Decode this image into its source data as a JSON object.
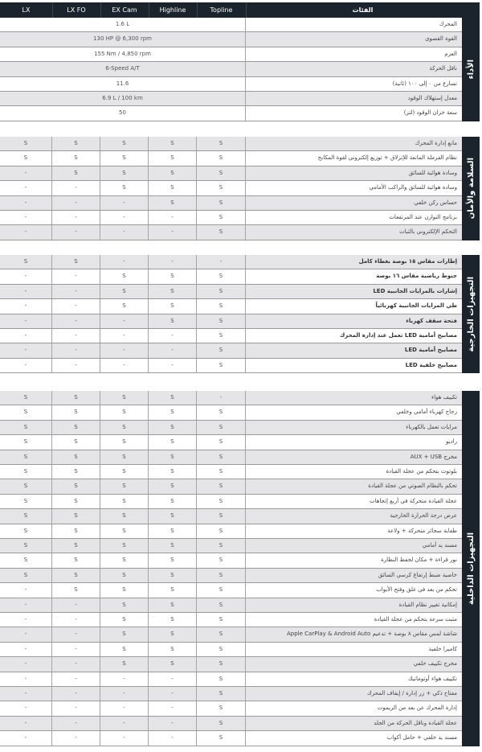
{
  "header": {
    "trims": [
      "LX",
      "LX FO",
      "EX Cam",
      "Highline",
      "Topline"
    ],
    "features_title": "الفئات"
  },
  "colors": {
    "dark": "#1b232d",
    "stripe": "#e5e5e7"
  },
  "sections": [
    {
      "title": "الأداء",
      "rows": [
        {
          "label": "المحرك",
          "value": "1.6 L"
        },
        {
          "label": "القوة القصوى",
          "value": "130 HP @ 6,300 rpm"
        },
        {
          "label": "العزم",
          "value": "155 Nm / 4,850 rpm"
        },
        {
          "label": "ناقل الحركة",
          "value": "6-Speed A/T"
        },
        {
          "label": "تسارع من ٠ إلى ١٠٠ (ثانية)",
          "value": "11.6"
        },
        {
          "label": "معدل إستهلاك الوقود",
          "value": "6.9 L / 100 km"
        },
        {
          "label": "سعة خزان الوقود (لتر)",
          "value": "50"
        }
      ]
    },
    {
      "title": "السلامة والأمان",
      "rows": [
        {
          "label": "مانع إدارة المحرك",
          "values": [
            "S",
            "S",
            "S",
            "S",
            "S"
          ]
        },
        {
          "label": "نظام الفرملة المانعة للإنزلاق + توزيع إلكتروني لقوة المكابح",
          "values": [
            "S",
            "S",
            "S",
            "S",
            "S"
          ]
        },
        {
          "label": "وسادة هوائية للسائق",
          "values": [
            "-",
            "S",
            "S",
            "S",
            "S"
          ]
        },
        {
          "label": "وسادة هوائية للسائق والراكب الأمامي",
          "values": [
            "-",
            "-",
            "S",
            "S",
            "S"
          ]
        },
        {
          "label": "حساس ركن خلفي",
          "values": [
            "-",
            "-",
            "-",
            "S",
            "S"
          ]
        },
        {
          "label": "برنامج التوازن عند المرتفعات",
          "values": [
            "-",
            "-",
            "-",
            "-",
            "S"
          ]
        },
        {
          "label": "التحكم الإلكتروني بالثبات",
          "values": [
            "-",
            "-",
            "-",
            "-",
            "S"
          ]
        }
      ]
    },
    {
      "title": "التجهيزات الخارجية",
      "rows": [
        {
          "label": "إطارات مقاس ١٥ بوصة بغطاء كامل",
          "values": [
            "S",
            "S",
            "-",
            "-",
            "-"
          ]
        },
        {
          "label": "جنوط رياضية مقاس ١٦ بوصة",
          "values": [
            "-",
            "-",
            "S",
            "S",
            "S"
          ]
        },
        {
          "label": "إشارات بالمرايات الجانبية LED",
          "values": [
            "-",
            "-",
            "S",
            "S",
            "S"
          ]
        },
        {
          "label": "طي المرايات الجانبية كهربائياً",
          "values": [
            "-",
            "-",
            "S",
            "S",
            "S"
          ]
        },
        {
          "label": "فتحة سقف كهرباء",
          "values": [
            "-",
            "-",
            "-",
            "S",
            "S"
          ]
        },
        {
          "label": "مصابيح أمامية LED تعمل عند إدارة المحرك",
          "values": [
            "-",
            "-",
            "-",
            "-",
            "S"
          ]
        },
        {
          "label": "مصابيح أمامية LED",
          "values": [
            "-",
            "-",
            "-",
            "-",
            "S"
          ]
        },
        {
          "label": "مصابيح خلفية LED",
          "values": [
            "-",
            "-",
            "-",
            "-",
            "S"
          ]
        }
      ]
    },
    {
      "title": "التجهيزات الداخلية",
      "rows": [
        {
          "label": "تكييف هواء",
          "values": [
            "S",
            "S",
            "S",
            "S",
            "-"
          ]
        },
        {
          "label": "زجاج كهرباء أمامي وخلفي",
          "values": [
            "S",
            "S",
            "S",
            "S",
            "S"
          ]
        },
        {
          "label": "مرايات تعمل بالكهرباء",
          "values": [
            "S",
            "S",
            "S",
            "S",
            "S"
          ]
        },
        {
          "label": "راديو",
          "values": [
            "S",
            "S",
            "S",
            "S",
            "S"
          ]
        },
        {
          "label": "مخرج AUX + USB",
          "values": [
            "S",
            "S",
            "S",
            "S",
            "S"
          ]
        },
        {
          "label": "بلوتوث بتحكم من عجلة القيادة",
          "values": [
            "S",
            "S",
            "S",
            "S",
            "S"
          ]
        },
        {
          "label": "تحكم بالنظام الصوتي من عجلة القيادة",
          "values": [
            "S",
            "S",
            "S",
            "S",
            "S"
          ]
        },
        {
          "label": "عجلة القيادة متحركة في أربع إتجاهات",
          "values": [
            "S",
            "S",
            "S",
            "S",
            "S"
          ]
        },
        {
          "label": "عرض درجة الحرارة الخارجية",
          "values": [
            "S",
            "S",
            "S",
            "S",
            "S"
          ]
        },
        {
          "label": "طفاية سجائر متحركة + ولاعة",
          "values": [
            "S",
            "S",
            "S",
            "S",
            "S"
          ]
        },
        {
          "label": "مسند يد أمامي",
          "values": [
            "S",
            "S",
            "S",
            "S",
            "S"
          ]
        },
        {
          "label": "نور قراءة + مكان لحفظ النظارة",
          "values": [
            "S",
            "S",
            "S",
            "S",
            "S"
          ]
        },
        {
          "label": "خاصية ضبط إرتفاع كرسي السائق",
          "values": [
            "S",
            "S",
            "S",
            "S",
            "S"
          ]
        },
        {
          "label": "تحكم من بعد في غلق وفتح الأبواب",
          "values": [
            "-",
            "S",
            "S",
            "S",
            "S"
          ]
        },
        {
          "label": "إمكانية تغيير نظام القيادة",
          "values": [
            "-",
            "-",
            "S",
            "S",
            "S"
          ]
        },
        {
          "label": "مثبت سرعة بتحكم من عجلة القيادة",
          "values": [
            "-",
            "-",
            "S",
            "S",
            "S"
          ]
        },
        {
          "label": "شاشة لمس مقاس ٨ بوصة + تدعيم Apple CarPlay & Android Auto",
          "values": [
            "-",
            "-",
            "S",
            "S",
            "S"
          ]
        },
        {
          "label": "كاميرا خلفية",
          "values": [
            "-",
            "-",
            "S",
            "S",
            "S"
          ]
        },
        {
          "label": "مخرج تكييف خلفي",
          "values": [
            "-",
            "-",
            "S",
            "S",
            "S"
          ]
        },
        {
          "label": "تكييف هواء أوتوماتيك",
          "values": [
            "-",
            "-",
            "-",
            "-",
            "S"
          ]
        },
        {
          "label": "مفتاح ذكي + زر إدارة / إيقاف المحرك",
          "values": [
            "-",
            "-",
            "-",
            "-",
            "S"
          ]
        },
        {
          "label": "إدارة المحرك عن بعد من الريموت",
          "values": [
            "-",
            "-",
            "-",
            "-",
            "S"
          ]
        },
        {
          "label": "عجلة القيادة وناقل الحركة من الجلد",
          "values": [
            "-",
            "-",
            "-",
            "-",
            "S"
          ]
        },
        {
          "label": "مسند يد خلفي + حامل أكواب",
          "values": [
            "-",
            "-",
            "-",
            "-",
            "S"
          ]
        }
      ]
    }
  ]
}
